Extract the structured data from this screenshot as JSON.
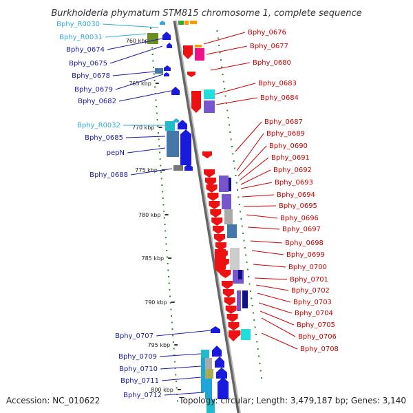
{
  "header": {
    "title": "Burkholderia phymatum STM815 chromosome 1, complete sequence"
  },
  "footer": {
    "accession": "Accession: NC_010622",
    "summary": "Topology: circular; Length: 3,479,187 bp; Genes: 3,140"
  },
  "colors": {
    "forward_label": "#1a1aa6",
    "reverse_label": "#cc0000",
    "rna_label": "#33aadd",
    "backbone": "#888888",
    "ticks": "#2a8a2a"
  },
  "scale": {
    "unit": "kbp",
    "ticks": [
      {
        "label": "760 kbp"
      },
      {
        "label": "765 kbp"
      },
      {
        "label": "770 kbp"
      },
      {
        "label": "775 kbp"
      },
      {
        "label": "780 kbp"
      },
      {
        "label": "785 kbp"
      },
      {
        "label": "790 kbp"
      },
      {
        "label": "795 kbp"
      },
      {
        "label": "800 kbp"
      }
    ]
  },
  "genes_left": [
    {
      "name": "Bphy_R0030",
      "type": "rna"
    },
    {
      "name": "Bphy_R0031",
      "type": "rna"
    },
    {
      "name": "Bphy_0674",
      "type": "cds"
    },
    {
      "name": "Bphy_0675",
      "type": "cds"
    },
    {
      "name": "Bphy_0678",
      "type": "cds"
    },
    {
      "name": "Bphy_0679",
      "type": "cds"
    },
    {
      "name": "Bphy_0682",
      "type": "cds"
    },
    {
      "name": "Bphy_R0032",
      "type": "rna"
    },
    {
      "name": "Bphy_0685",
      "type": "cds"
    },
    {
      "name": "pepN",
      "type": "cds"
    },
    {
      "name": "Bphy_0688",
      "type": "cds"
    },
    {
      "name": "Bphy_0707",
      "type": "cds"
    },
    {
      "name": "Bphy_0709",
      "type": "cds"
    },
    {
      "name": "Bphy_0710",
      "type": "cds"
    },
    {
      "name": "Bphy_0711",
      "type": "cds"
    },
    {
      "name": "Bphy_0712",
      "type": "cds"
    }
  ],
  "genes_right": [
    {
      "name": "Bphy_0676"
    },
    {
      "name": "Bphy_0677"
    },
    {
      "name": "Bphy_0680"
    },
    {
      "name": "Bphy_0683"
    },
    {
      "name": "Bphy_0684"
    },
    {
      "name": "Bphy_0687"
    },
    {
      "name": "Bphy_0689"
    },
    {
      "name": "Bphy_0690"
    },
    {
      "name": "Bphy_0691"
    },
    {
      "name": "Bphy_0692"
    },
    {
      "name": "Bphy_0693"
    },
    {
      "name": "Bphy_0694"
    },
    {
      "name": "Bphy_0695"
    },
    {
      "name": "Bphy_0696"
    },
    {
      "name": "Bphy_0697"
    },
    {
      "name": "Bphy_0698"
    },
    {
      "name": "Bphy_0699"
    },
    {
      "name": "Bphy_0700"
    },
    {
      "name": "Bphy_0701"
    },
    {
      "name": "Bphy_0702"
    },
    {
      "name": "Bphy_0703"
    },
    {
      "name": "Bphy_0704"
    },
    {
      "name": "Bphy_0705"
    },
    {
      "name": "Bphy_0706"
    },
    {
      "name": "Bphy_0708"
    }
  ]
}
